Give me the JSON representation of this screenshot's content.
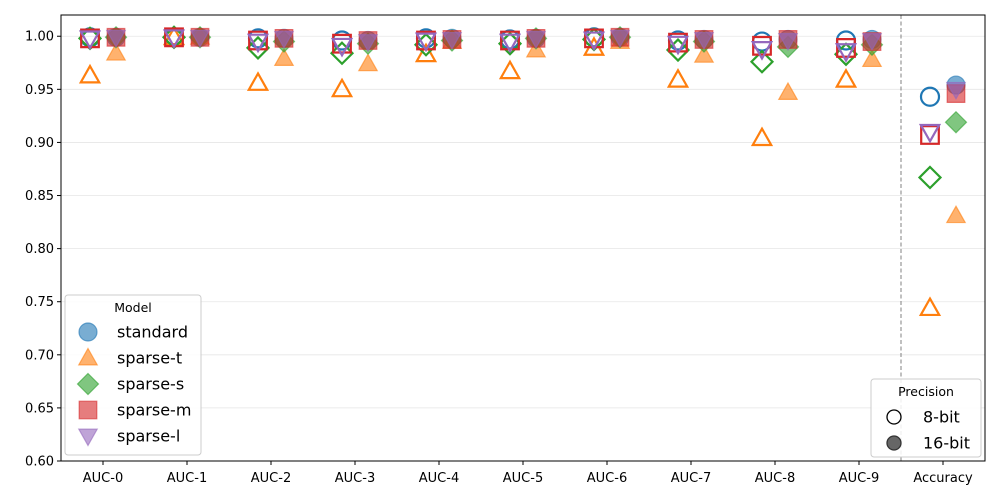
{
  "chart_data": {
    "type": "scatter",
    "categories": [
      "AUC-0",
      "AUC-1",
      "AUC-2",
      "AUC-3",
      "AUC-4",
      "AUC-5",
      "AUC-6",
      "AUC-7",
      "AUC-8",
      "AUC-9",
      "Accuracy"
    ],
    "ylim": [
      0.6,
      1.02
    ],
    "yticks": [
      0.6,
      0.65,
      0.7,
      0.75,
      0.8,
      0.85,
      0.9,
      0.95,
      1.0
    ],
    "grid": "horizontal",
    "divider_before": "Accuracy",
    "legends": {
      "model": {
        "title": "Model",
        "placement": "lower-left",
        "entries": [
          {
            "name": "standard",
            "marker": "circle",
            "color": "#1f77b4"
          },
          {
            "name": "sparse-t",
            "marker": "triangle-up",
            "color": "#ff7f0e"
          },
          {
            "name": "sparse-s",
            "marker": "diamond",
            "color": "#2ca02c"
          },
          {
            "name": "sparse-m",
            "marker": "square",
            "color": "#d62728"
          },
          {
            "name": "sparse-l",
            "marker": "triangle-down",
            "color": "#9467bd"
          }
        ]
      },
      "precision": {
        "title": "Precision",
        "placement": "lower-right",
        "entries": [
          {
            "name": "8-bit",
            "style": "hollow"
          },
          {
            "name": "16-bit",
            "style": "filled"
          }
        ]
      }
    },
    "series": [
      {
        "model": "standard",
        "precision": "8-bit",
        "values": [
          0.999,
          0.999,
          0.998,
          0.996,
          0.998,
          0.997,
          0.999,
          0.996,
          0.995,
          0.996,
          0.943
        ]
      },
      {
        "model": "standard",
        "precision": "16-bit",
        "values": [
          0.999,
          0.999,
          0.998,
          0.996,
          0.998,
          0.998,
          0.999,
          0.997,
          0.997,
          0.997,
          0.954
        ]
      },
      {
        "model": "sparse-t",
        "precision": "8-bit",
        "values": [
          0.963,
          0.999,
          0.956,
          0.95,
          0.983,
          0.967,
          0.989,
          0.959,
          0.904,
          0.959,
          0.744
        ]
      },
      {
        "model": "sparse-t",
        "precision": "16-bit",
        "values": [
          0.984,
          0.999,
          0.979,
          0.974,
          0.995,
          0.987,
          0.995,
          0.982,
          0.947,
          0.978,
          0.831
        ]
      },
      {
        "model": "sparse-s",
        "precision": "8-bit",
        "values": [
          0.998,
          0.999,
          0.989,
          0.984,
          0.992,
          0.993,
          0.997,
          0.987,
          0.976,
          0.983,
          0.867
        ]
      },
      {
        "model": "sparse-s",
        "precision": "16-bit",
        "values": [
          0.999,
          0.999,
          0.995,
          0.993,
          0.996,
          0.998,
          0.999,
          0.995,
          0.99,
          0.992,
          0.919
        ]
      },
      {
        "model": "sparse-m",
        "precision": "8-bit",
        "values": [
          0.998,
          0.999,
          0.996,
          0.993,
          0.996,
          0.996,
          0.998,
          0.994,
          0.991,
          0.989,
          0.907
        ]
      },
      {
        "model": "sparse-m",
        "precision": "16-bit",
        "values": [
          0.999,
          0.999,
          0.998,
          0.996,
          0.997,
          0.998,
          0.999,
          0.997,
          0.997,
          0.995,
          0.946
        ]
      },
      {
        "model": "sparse-l",
        "precision": "8-bit",
        "values": [
          0.998,
          0.999,
          0.995,
          0.991,
          0.996,
          0.995,
          0.997,
          0.993,
          0.988,
          0.986,
          0.91
        ]
      },
      {
        "model": "sparse-l",
        "precision": "16-bit",
        "values": [
          0.999,
          0.999,
          0.998,
          0.995,
          0.997,
          0.998,
          0.999,
          0.997,
          0.996,
          0.996,
          0.95
        ]
      }
    ]
  }
}
